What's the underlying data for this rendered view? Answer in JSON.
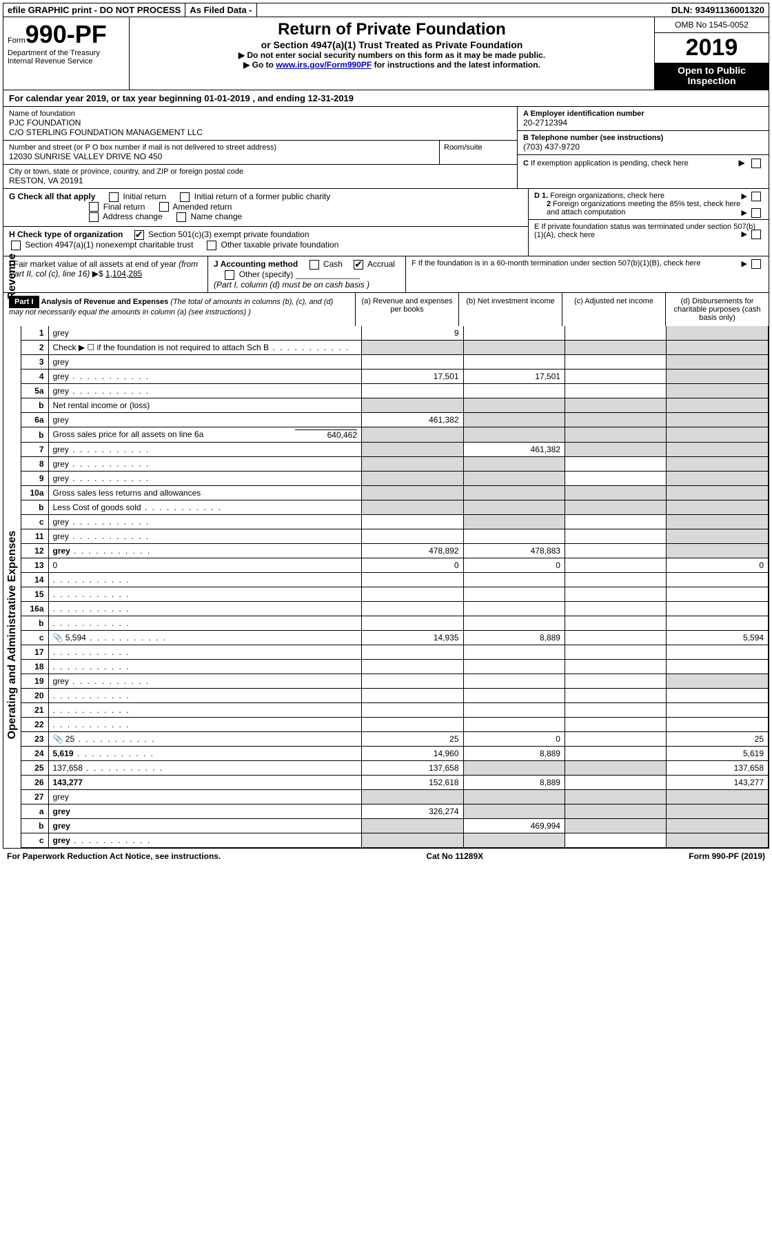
{
  "top_bar": {
    "efile": "efile GRAPHIC print - DO NOT PROCESS",
    "asfiled": "As Filed Data -",
    "dln": "DLN: 93491136001320"
  },
  "header": {
    "form_prefix": "Form",
    "form_number": "990-PF",
    "dept": "Department of the Treasury",
    "irs": "Internal Revenue Service",
    "title": "Return of Private Foundation",
    "sub1": "or Section 4947(a)(1) Trust Treated as Private Foundation",
    "sub2a": "▶ Do not enter social security numbers on this form as it may be made public.",
    "sub2b_pre": "▶ Go to ",
    "sub2b_link": "www.irs.gov/Form990PF",
    "sub2b_post": " for instructions and the latest information.",
    "omb": "OMB No 1545-0052",
    "year": "2019",
    "open_public": "Open to Public Inspection"
  },
  "calyear": {
    "text_pre": "For calendar year 2019, or tax year beginning ",
    "begin": "01-01-2019",
    "mid": " , and ending ",
    "end": "12-31-2019"
  },
  "info": {
    "name_label": "Name of foundation",
    "name1": "PJC FOUNDATION",
    "name2": "C/O STERLING FOUNDATION MANAGEMENT LLC",
    "addr_label": "Number and street (or P O  box number if mail is not delivered to street address)",
    "addr": "12030 SUNRISE VALLEY DRIVE NO 450",
    "room_label": "Room/suite",
    "city_label": "City or town, state or province, country, and ZIP or foreign postal code",
    "city": "RESTON, VA  20191",
    "a_label": "A Employer identification number",
    "a_val": "20-2712394",
    "b_label": "B Telephone number (see instructions)",
    "b_val": "(703) 437-9720",
    "c_label": "C If exemption application is pending, check here",
    "d1": "D 1. Foreign organizations, check here",
    "d2": "2  Foreign organizations meeting the 85% test, check here and attach computation",
    "e_label": "E  If private foundation status was terminated under section 507(b)(1)(A), check here",
    "f_label": "F  If the foundation is in a 60-month termination under section 507(b)(1)(B), check here"
  },
  "g": {
    "label": "G Check all that apply",
    "opts": [
      "Initial return",
      "Initial return of a former public charity",
      "Final return",
      "Amended return",
      "Address change",
      "Name change"
    ]
  },
  "h": {
    "label": "H Check type of organization",
    "o1": "Section 501(c)(3) exempt private foundation",
    "o2": "Section 4947(a)(1) nonexempt charitable trust",
    "o3": "Other taxable private foundation"
  },
  "i": {
    "label_pre": "I Fair market value of all assets at end of year (from Part II, col  (c), line 16)  ▶$ ",
    "value": "1,104,285",
    "j_label": "J Accounting method",
    "cash": "Cash",
    "accrual": "Accrual",
    "other": "Other (specify)",
    "note": "(Part I, column (d) must be on cash basis )"
  },
  "part1": {
    "tag": "Part I",
    "title": "Analysis of Revenue and Expenses",
    "note": " (The total of amounts in columns (b), (c), and (d) may not necessarily equal the amounts in column (a) (see instructions) )",
    "cols": {
      "a": "(a)   Revenue and expenses per books",
      "b": "(b)  Net investment income",
      "c": "(c)  Adjusted net income",
      "d": "(d)  Disbursements for charitable purposes (cash basis only)"
    }
  },
  "side_labels": {
    "rev": "Revenue",
    "exp": "Operating and Administrative Expenses"
  },
  "lines": [
    {
      "n": "1",
      "d": "grey",
      "a": "9",
      "b": "",
      "c": ""
    },
    {
      "n": "2",
      "d": "Check ▶ ☐ if the foundation is not required to attach Sch  B",
      "dots": true,
      "noamts": true
    },
    {
      "n": "3",
      "d": "grey",
      "a": "",
      "b": "",
      "c": ""
    },
    {
      "n": "4",
      "d": "grey",
      "dots": true,
      "a": "17,501",
      "b": "17,501",
      "c": ""
    },
    {
      "n": "5a",
      "d": "grey",
      "dots": true,
      "a": "",
      "b": "",
      "c": ""
    },
    {
      "n": "b",
      "d": "Net rental income or (loss)",
      "noamts": true
    },
    {
      "n": "6a",
      "d": "grey",
      "a": "461,382",
      "b": "grey",
      "c": "grey"
    },
    {
      "n": "b",
      "d": "Gross sales price for all assets on line 6a",
      "extra": "640,462",
      "noamts": true
    },
    {
      "n": "7",
      "d": "grey",
      "dots": true,
      "a": "grey",
      "b": "461,382",
      "c": "grey"
    },
    {
      "n": "8",
      "d": "grey",
      "dots": true,
      "a": "grey",
      "b": "grey",
      "c": ""
    },
    {
      "n": "9",
      "d": "grey",
      "dots": true,
      "a": "grey",
      "b": "grey",
      "c": ""
    },
    {
      "n": "10a",
      "d": "Gross sales less returns and allowances",
      "noamts": true
    },
    {
      "n": "b",
      "d": "Less  Cost of goods sold",
      "dots": true,
      "noamts": true
    },
    {
      "n": "c",
      "d": "grey",
      "dots": true,
      "a": "",
      "b": "grey",
      "c": ""
    },
    {
      "n": "11",
      "d": "grey",
      "dots": true,
      "a": "",
      "b": "",
      "c": ""
    },
    {
      "n": "12",
      "d": "grey",
      "bold": true,
      "dots": true,
      "a": "478,892",
      "b": "478,883",
      "c": ""
    },
    {
      "n": "13",
      "d": "0",
      "a": "0",
      "b": "0",
      "c": "",
      "sec": "exp"
    },
    {
      "n": "14",
      "d": "",
      "dots": true,
      "a": "",
      "b": "",
      "c": ""
    },
    {
      "n": "15",
      "d": "",
      "dots": true,
      "a": "",
      "b": "",
      "c": ""
    },
    {
      "n": "16a",
      "d": "",
      "dots": true,
      "a": "",
      "b": "",
      "c": ""
    },
    {
      "n": "b",
      "d": "",
      "dots": true,
      "a": "",
      "b": "",
      "c": ""
    },
    {
      "n": "c",
      "d": "5,594",
      "dots": true,
      "icon": true,
      "a": "14,935",
      "b": "8,889",
      "c": ""
    },
    {
      "n": "17",
      "d": "",
      "dots": true,
      "a": "",
      "b": "",
      "c": ""
    },
    {
      "n": "18",
      "d": "",
      "dots": true,
      "a": "",
      "b": "",
      "c": ""
    },
    {
      "n": "19",
      "d": "grey",
      "dots": true,
      "a": "",
      "b": "",
      "c": ""
    },
    {
      "n": "20",
      "d": "",
      "dots": true,
      "a": "",
      "b": "",
      "c": ""
    },
    {
      "n": "21",
      "d": "",
      "dots": true,
      "a": "",
      "b": "",
      "c": ""
    },
    {
      "n": "22",
      "d": "",
      "dots": true,
      "a": "",
      "b": "",
      "c": ""
    },
    {
      "n": "23",
      "d": "25",
      "dots": true,
      "icon": true,
      "a": "25",
      "b": "0",
      "c": ""
    },
    {
      "n": "24",
      "d": "5,619",
      "bold": true,
      "dots": true,
      "a": "14,960",
      "b": "8,889",
      "c": ""
    },
    {
      "n": "25",
      "d": "137,658",
      "dots": true,
      "a": "137,658",
      "b": "grey",
      "c": "grey"
    },
    {
      "n": "26",
      "d": "143,277",
      "bold": true,
      "a": "152,618",
      "b": "8,889",
      "c": ""
    },
    {
      "n": "27",
      "d": "grey",
      "a": "grey",
      "b": "grey",
      "c": "grey"
    },
    {
      "n": "a",
      "d": "grey",
      "bold": true,
      "a": "326,274",
      "b": "grey",
      "c": "grey"
    },
    {
      "n": "b",
      "d": "grey",
      "bold": true,
      "a": "grey",
      "b": "469,994",
      "c": "grey"
    },
    {
      "n": "c",
      "d": "grey",
      "bold": true,
      "dots": true,
      "a": "grey",
      "b": "grey",
      "c": ""
    }
  ],
  "footer": {
    "left": "For Paperwork Reduction Act Notice, see instructions.",
    "mid": "Cat No  11289X",
    "right": "Form 990-PF (2019)"
  },
  "colors": {
    "grey": "#d9d9d9",
    "link": "#0000cc"
  }
}
